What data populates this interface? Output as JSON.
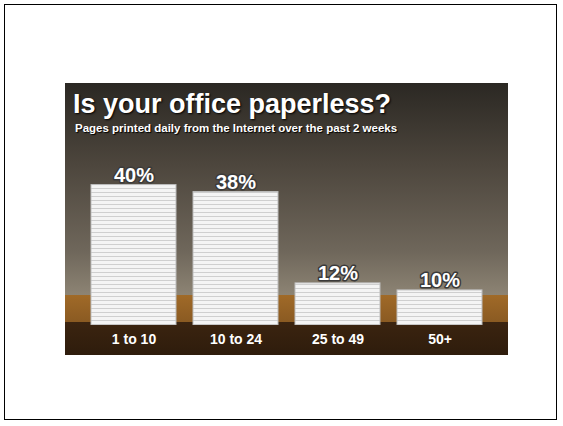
{
  "chart_data": {
    "type": "bar",
    "title": "Is your office paperless?",
    "subtitle": "Pages printed daily from the Internet over the past 2 weeks",
    "categories": [
      "1 to 10",
      "10 to 24",
      "25 to 49",
      "50+"
    ],
    "values": [
      40,
      38,
      12,
      10
    ],
    "value_labels": [
      "40%",
      "38%",
      "12%",
      "10%"
    ],
    "data_labels": true,
    "color": "#f4f4f4",
    "ylim": [
      0,
      45
    ],
    "tick_labels": "x",
    "grid": false
  }
}
